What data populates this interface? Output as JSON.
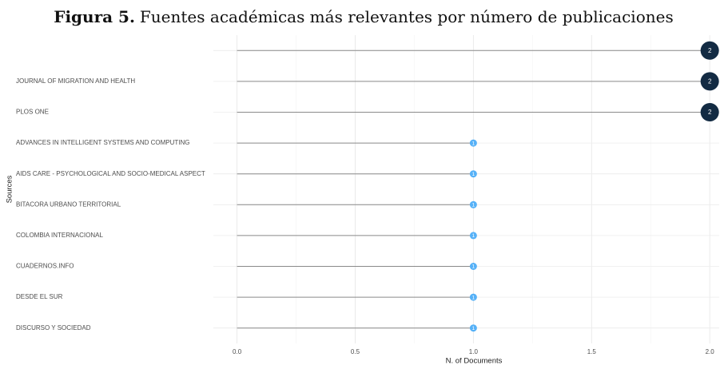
{
  "chart_data": {
    "type": "lollipop",
    "title_label": "Figura 5.",
    "title": "Fuentes académicas más relevantes por número de publicaciones",
    "x_label": "N. of Documents",
    "y_label": "Sources",
    "categories": [
      null,
      "JOURNAL OF MIGRATION AND HEALTH",
      "PLOS ONE",
      "ADVANCES IN INTELLIGENT SYSTEMS AND COMPUTING",
      "AIDS CARE - PSYCHOLOGICAL AND SOCIO-MEDICAL ASPECT",
      "BITACORA URBANO TERRITORIAL",
      "COLOMBIA INTERNACIONAL",
      "CUADERNOS.INFO",
      "DESDE EL SUR",
      "DISCURSO Y SOCIEDAD"
    ],
    "values": [
      2,
      2,
      2,
      1,
      1,
      1,
      1,
      1,
      1,
      1
    ],
    "colors": [
      "#132b43",
      "#132b43",
      "#132b43",
      "#56b1f7",
      "#56b1f7",
      "#56b1f7",
      "#56b1f7",
      "#56b1f7",
      "#56b1f7",
      "#56b1f7"
    ],
    "stem_color": "#8a8a8a",
    "xlim": [
      -0.1,
      2.04
    ],
    "xticks": [
      {
        "value": 0,
        "label": "0.0"
      },
      {
        "value": 0.5,
        "label": "0.5"
      },
      {
        "value": 1,
        "label": "1.0"
      },
      {
        "value": 1.5,
        "label": "1.5"
      },
      {
        "value": 2,
        "label": "2.0"
      }
    ],
    "xminor": [
      0.25,
      0.75,
      1.25,
      1.75
    ],
    "grid": true
  }
}
